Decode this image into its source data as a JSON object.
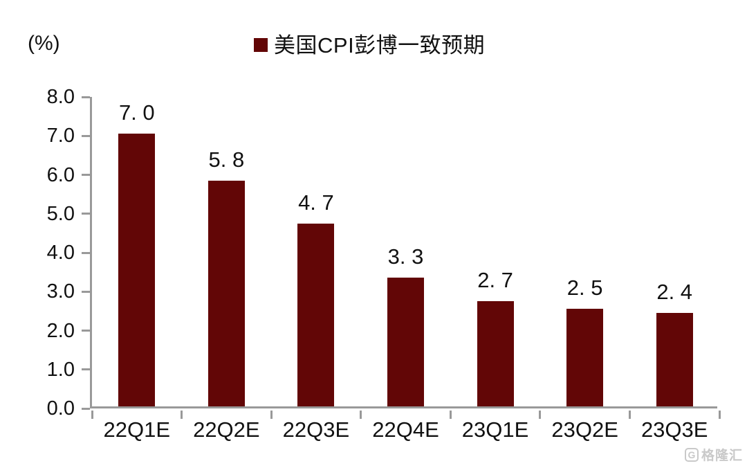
{
  "chart_data": {
    "type": "bar",
    "title": "",
    "legend": "美国CPI彭博一致预期",
    "legend_position": "top-center",
    "unit_label": "(%)",
    "categories": [
      "22Q1E",
      "22Q2E",
      "22Q3E",
      "22Q4E",
      "23Q1E",
      "23Q2E",
      "23Q3E"
    ],
    "values": [
      7.0,
      5.8,
      4.7,
      3.3,
      2.7,
      2.5,
      2.4
    ],
    "value_labels": [
      "7. 0",
      "5. 8",
      "4. 7",
      "3. 3",
      "2. 7",
      "2. 5",
      "2. 4"
    ],
    "ylim": [
      0.0,
      8.0
    ],
    "ytick_labels": [
      "8.0",
      "7.0",
      "6.0",
      "5.0",
      "4.0",
      "3.0",
      "2.0",
      "1.0",
      "0.0"
    ],
    "grid": false,
    "bar_color": "#620606",
    "axis_color": "#999999",
    "text_color": "#111111"
  },
  "watermark": {
    "logo": "G",
    "text": "格隆汇"
  }
}
